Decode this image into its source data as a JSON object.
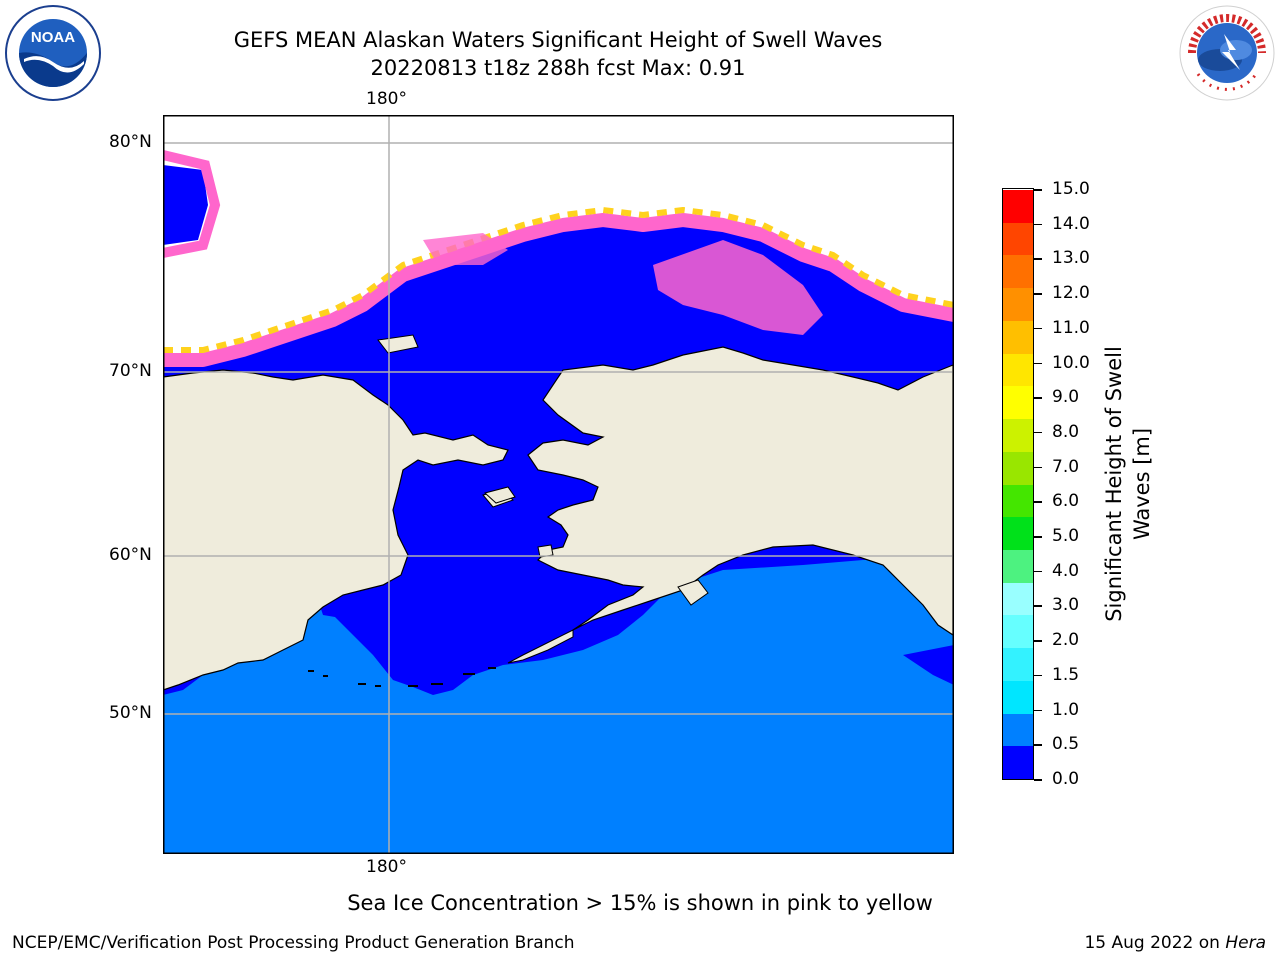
{
  "title": {
    "line1": "GEFS MEAN Alaskan Waters Significant Height of Swell Waves",
    "line2": "20220813 t18z 288h fcst   Max: 0.91"
  },
  "logos": {
    "left": {
      "text": "NOAA",
      "icon": "noaa-logo-icon"
    },
    "right": {
      "text": "NATIONAL WEATHER SERVICE",
      "icon": "nws-logo-icon"
    }
  },
  "map": {
    "lon_label_top": "180°",
    "lon_label_bottom": "180°",
    "lat_labels": [
      "80°N",
      "70°N",
      "60°N",
      "50°N"
    ],
    "colors": {
      "land": "#efecdc",
      "deep_swell": "#0000ff",
      "ocean_swell": "#0080ff",
      "ice_low": "#ff66cc",
      "ice_high": "#ffd21e",
      "ice_free": "#ffffff",
      "grid": "#b0b0b0"
    }
  },
  "colorbar": {
    "title_line1": "Significant Height of Swell",
    "title_line2": "Waves [m]",
    "ticks": [
      "15.0",
      "14.0",
      "13.0",
      "12.0",
      "11.0",
      "10.0",
      "9.0",
      "8.0",
      "7.0",
      "6.0",
      "5.0",
      "4.0",
      "3.0",
      "2.0",
      "1.5",
      "1.0",
      "0.5",
      "0.0"
    ],
    "colors": [
      "#0000ff",
      "#0080ff",
      "#00e6ff",
      "#33f2ff",
      "#66ffff",
      "#99ffff",
      "#4df280",
      "#00e11a",
      "#44e600",
      "#99e600",
      "#ccf200",
      "#ffff00",
      "#ffe600",
      "#ffbf00",
      "#ff9000",
      "#ff7000",
      "#ff4500",
      "#ff0000"
    ]
  },
  "caption": "Sea Ice Concentration > 15% is shown in pink to yellow",
  "footer": {
    "left": "NCEP/EMC/Verification Post Processing Product Generation Branch",
    "right_prefix": "15 Aug 2022 on ",
    "right_host": "Hera"
  }
}
